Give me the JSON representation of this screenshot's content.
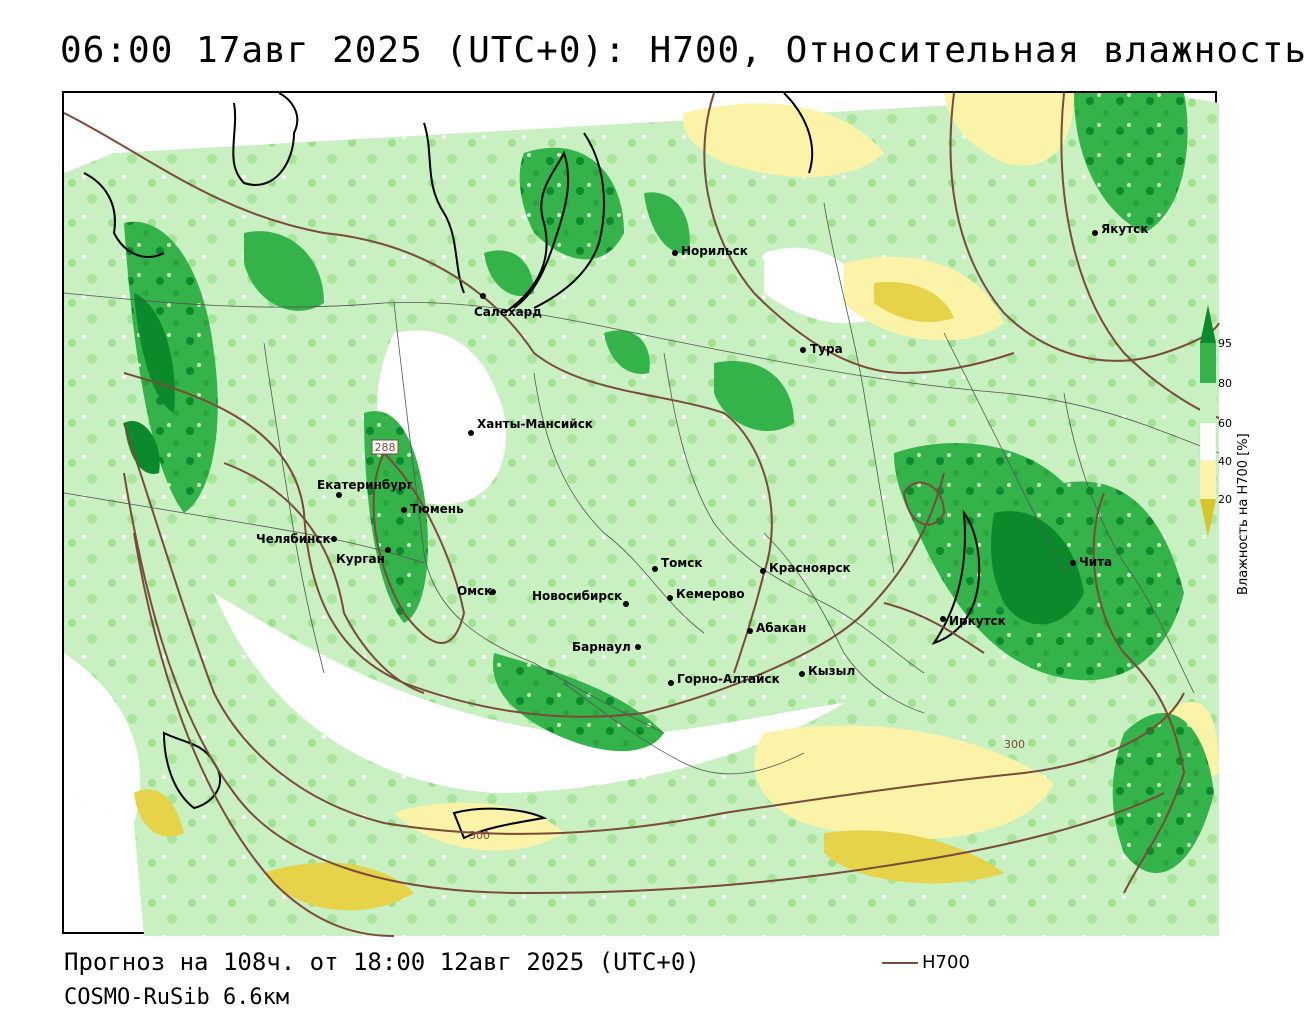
{
  "title": "06:00 17авг 2025 (UTC+0): H700, Относительная влажность",
  "footer": {
    "forecast": "Прогноз на 108ч. от 18:00 12авг 2025 (UTC+0)",
    "model": "COSMO-RuSib 6.6км"
  },
  "key": {
    "label": "H700",
    "color": "#7a4a3a"
  },
  "legend": {
    "title": "Влажность на H700 [%]",
    "ticks": [
      "95",
      "80",
      "60",
      "40",
      "20"
    ],
    "colors": [
      "#0a8a2a",
      "#34b34a",
      "#c8f0c0",
      "#ffffff",
      "#fbf3a8",
      "#d9c52a"
    ]
  },
  "contour_labels": [
    "288",
    "300",
    "300"
  ],
  "cities": [
    "Якутск",
    "Норильск",
    "Салехард",
    "Тура",
    "Ханты-Мансийск",
    "Екатеринбург",
    "Тюмень",
    "Челябинск",
    "Курган",
    "Омск",
    "Томск",
    "Новосибирск",
    "Кемерово",
    "Красноярск",
    "Абакан",
    "Барнаул",
    "Горно-Алтайск",
    "Кызыл",
    "Иркутск",
    "Чита"
  ]
}
